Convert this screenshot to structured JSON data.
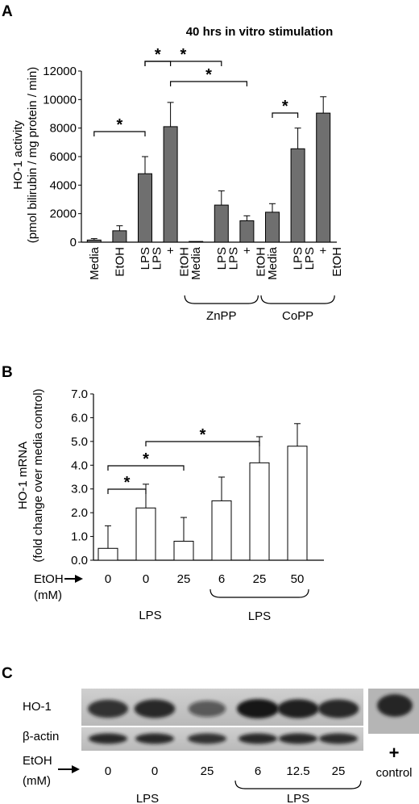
{
  "panels": {
    "a": {
      "label": "A"
    },
    "b": {
      "label": "B"
    },
    "c": {
      "label": "C"
    }
  },
  "chart_data": [
    {
      "type": "bar",
      "title": "40 hrs in vitro stimulation",
      "ylabel_line1": "HO-1 activity",
      "ylabel_line2": "(pmol bilirubin / mg protein / min)",
      "ylim": [
        0,
        12000
      ],
      "yticks": [
        "0",
        "2000",
        "4000",
        "6000",
        "8000",
        "10000",
        "12000"
      ],
      "bar_color": "#6f6f6f",
      "categories": [
        "Media",
        "EtOH",
        "LPS",
        "LPS + EtOH",
        "Media",
        "LPS",
        "LPS + EtOH",
        "Media",
        "LPS",
        "LPS + EtOH"
      ],
      "category_lines": [
        [
          "Media"
        ],
        [
          "EtOH"
        ],
        [
          "LPS"
        ],
        [
          "LPS",
          "+",
          "EtOH"
        ],
        [
          "Media"
        ],
        [
          "LPS"
        ],
        [
          "LPS",
          "+",
          "EtOH"
        ],
        [
          "Media"
        ],
        [
          "LPS"
        ],
        [
          "LPS",
          "+",
          "EtOH"
        ]
      ],
      "values": [
        150,
        800,
        4800,
        8100,
        50,
        2600,
        1500,
        2100,
        6550,
        9050
      ],
      "errors": [
        100,
        350,
        1200,
        1700,
        0,
        1000,
        350,
        600,
        1450,
        1150
      ],
      "groups": [
        {
          "label": "ZnPP",
          "from": 4,
          "to": 6
        },
        {
          "label": "CoPP",
          "from": 7,
          "to": 9
        }
      ],
      "significance": [
        {
          "a": 0,
          "b": 2,
          "label": "*"
        },
        {
          "a": 2,
          "b": 3,
          "label": "*"
        },
        {
          "a": 2,
          "b": 5,
          "label": "*"
        },
        {
          "a": 3,
          "b": 6,
          "label": "*"
        },
        {
          "a": 7,
          "b": 8,
          "label": "*"
        }
      ],
      "grid": false
    },
    {
      "type": "bar",
      "ylabel_line1": "HO-1 mRNA",
      "ylabel_line2": "(fold change over media control)",
      "ylim": [
        0,
        7
      ],
      "yticks": [
        "0.0",
        "1.0",
        "2.0",
        "3.0",
        "4.0",
        "5.0",
        "6.0",
        "7.0"
      ],
      "bar_color": "#ffffff",
      "categories": [
        "0",
        "0",
        "25",
        "6",
        "25",
        "50"
      ],
      "values": [
        0.5,
        2.2,
        0.8,
        2.5,
        4.1,
        4.8
      ],
      "errors": [
        0.95,
        1.0,
        1.0,
        1.0,
        1.1,
        0.95
      ],
      "x_row_label": "EtOH",
      "x_row_unit": "(mM)",
      "groups": [
        {
          "label": "LPS",
          "from": 1,
          "to": 2,
          "bracket": false
        },
        {
          "label": "LPS",
          "from": 3,
          "to": 5,
          "bracket": true
        }
      ],
      "significance": [
        {
          "a": 0,
          "b": 1,
          "label": "*"
        },
        {
          "a": 0,
          "b": 2,
          "label": "*"
        },
        {
          "a": 1,
          "b": 4,
          "label": "*"
        }
      ],
      "grid": false
    }
  ],
  "blot": {
    "rows": [
      "HO-1",
      "β-actin"
    ],
    "ho1_intensity": [
      0.85,
      0.9,
      0.6,
      1.0,
      0.95,
      0.9
    ],
    "actin_intensity": [
      0.9,
      0.9,
      0.85,
      0.9,
      0.9,
      0.88
    ],
    "etoh_values": [
      "0",
      "0",
      "25",
      "6",
      "12.5",
      "25"
    ],
    "x_row_label": "EtOH",
    "x_row_unit": "(mM)",
    "groups": [
      {
        "label": "LPS",
        "bracket": false
      },
      {
        "label": "LPS",
        "bracket": true
      }
    ],
    "control_sign": "+",
    "control_label": "control"
  }
}
